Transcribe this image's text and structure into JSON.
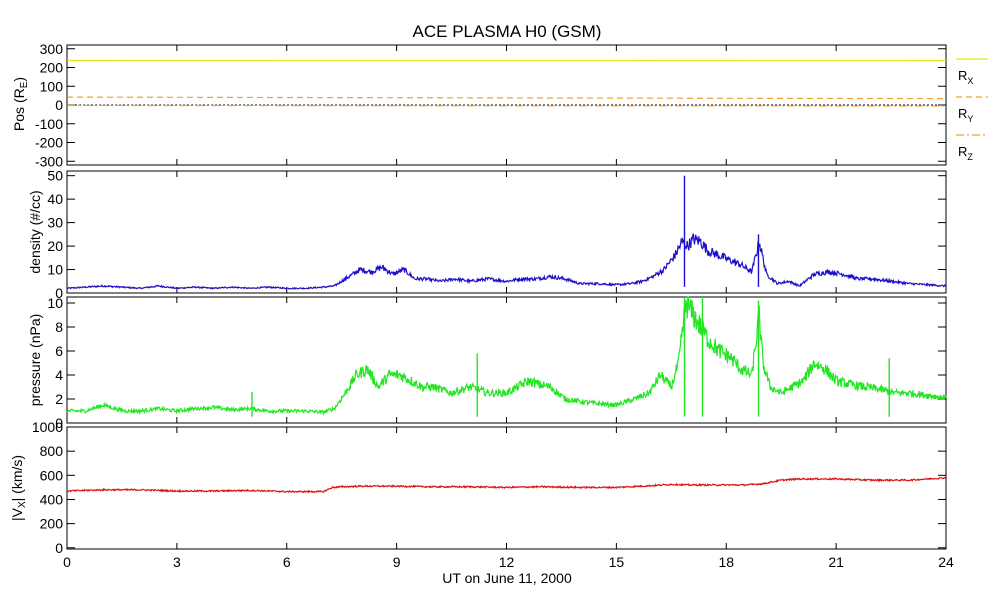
{
  "title": "ACE PLASMA H0 (GSM)",
  "xlabel": "UT on June 11, 2000",
  "chart_data": [
    {
      "type": "line",
      "ylabel": "Pos (RE)",
      "ylim": [
        -320,
        320
      ],
      "yticks": [
        300,
        200,
        100,
        0,
        -100,
        -200,
        -300
      ],
      "xlim": [
        0,
        24
      ],
      "xticks": [
        0,
        3,
        6,
        9,
        12,
        15,
        18,
        21,
        24
      ],
      "zero_line": true,
      "legend": "right",
      "series": [
        {
          "name": "RX",
          "color": "#e6e619",
          "style": "solid",
          "x": [
            0,
            24
          ],
          "values": [
            238,
            237
          ]
        },
        {
          "name": "RY",
          "color": "#f0a030",
          "style": "dashed",
          "x": [
            0,
            6,
            12,
            18,
            24
          ],
          "values": [
            42,
            40,
            38,
            36,
            34
          ]
        },
        {
          "name": "RZ",
          "color": "#f0a030",
          "style": "dashdot",
          "x": [
            0,
            6,
            12,
            18,
            24
          ],
          "values": [
            -2,
            -3,
            -4,
            -4,
            -5
          ]
        }
      ]
    },
    {
      "type": "line",
      "ylabel": "density (#/cc)",
      "ylim": [
        0,
        52
      ],
      "yticks": [
        0,
        10,
        20,
        30,
        40,
        50
      ],
      "xlim": [
        0,
        24
      ],
      "xticks": [
        0,
        3,
        6,
        9,
        12,
        15,
        18,
        21,
        24
      ],
      "series": [
        {
          "name": "density",
          "color": "#1e10c8",
          "x": [
            0,
            0.5,
            1,
            1.5,
            2,
            2.5,
            3,
            3.5,
            4,
            4.5,
            5,
            5.5,
            6,
            6.5,
            7,
            7.3,
            7.6,
            8,
            8.3,
            8.6,
            8.9,
            9.2,
            9.5,
            9.8,
            10.2,
            10.6,
            11,
            11.5,
            12,
            12.4,
            12.8,
            13.2,
            13.6,
            14,
            14.5,
            15,
            15.4,
            15.7,
            16,
            16.3,
            16.6,
            16.8,
            16.95,
            17.1,
            17.3,
            17.5,
            17.8,
            18.1,
            18.4,
            18.7,
            18.9,
            19.1,
            19.4,
            19.7,
            20,
            20.4,
            20.8,
            21.2,
            21.6,
            22,
            22.5,
            23,
            23.5,
            24
          ],
          "values": [
            2,
            2.5,
            3,
            2.5,
            2,
            3,
            2,
            2.5,
            2,
            2.5,
            2,
            2.5,
            2,
            2,
            2.5,
            3,
            6,
            10,
            9,
            11,
            8,
            10,
            6,
            6,
            5,
            6,
            5,
            6,
            5,
            6,
            6,
            7,
            6,
            4,
            4,
            3.5,
            4,
            5,
            7,
            10,
            16,
            22,
            20,
            23,
            22,
            18,
            16,
            14,
            12,
            9,
            22,
            8,
            4,
            5,
            3,
            8,
            9,
            8,
            6,
            6,
            5,
            4,
            3.5,
            3
          ]
        }
      ],
      "spikes": [
        {
          "x": 16.86,
          "value": 50
        },
        {
          "x": 18.88,
          "value": 25
        }
      ]
    },
    {
      "type": "line",
      "ylabel": "pressure (nPa)",
      "ylim": [
        0,
        10.5
      ],
      "yticks": [
        0,
        2,
        4,
        6,
        8,
        10
      ],
      "xlim": [
        0,
        24
      ],
      "xticks": [
        0,
        3,
        6,
        9,
        12,
        15,
        18,
        21,
        24
      ],
      "series": [
        {
          "name": "pressure",
          "color": "#22e622",
          "x": [
            0,
            0.5,
            1,
            1.3,
            1.6,
            2,
            2.5,
            3,
            3.5,
            4,
            4.5,
            5,
            5.5,
            6,
            6.5,
            7,
            7.3,
            7.6,
            7.9,
            8.2,
            8.5,
            8.8,
            9.1,
            9.4,
            9.7,
            10,
            10.5,
            11,
            11.5,
            12,
            12.3,
            12.6,
            12.9,
            13.2,
            13.6,
            14,
            14.5,
            15,
            15.5,
            15.9,
            16.2,
            16.5,
            16.7,
            16.9,
            17.1,
            17.3,
            17.5,
            17.8,
            18.1,
            18.4,
            18.7,
            18.9,
            19,
            19.2,
            19.5,
            19.8,
            20.1,
            20.4,
            20.7,
            21,
            21.4,
            21.8,
            22.2,
            22.6,
            23,
            23.5,
            24
          ],
          "values": [
            1,
            1,
            1.5,
            1.2,
            1,
            1,
            1.2,
            1,
            1.2,
            1.3,
            1.1,
            1.2,
            1,
            1,
            1,
            0.9,
            1.2,
            2.5,
            4,
            4.5,
            3,
            4,
            4,
            3.5,
            3,
            3,
            2.5,
            3,
            2.5,
            2.5,
            3,
            3.5,
            3.2,
            3,
            2,
            1.8,
            1.6,
            1.5,
            2,
            2.5,
            4,
            3,
            5,
            10,
            9,
            8,
            7,
            6,
            5.5,
            4.5,
            4,
            9,
            5,
            3,
            2.5,
            3,
            3.5,
            5,
            4.5,
            3.5,
            3.2,
            3,
            2.8,
            2.5,
            2.5,
            2.3,
            2.1
          ]
        }
      ],
      "spikes": [
        {
          "x": 5.05,
          "value": 2.6
        },
        {
          "x": 11.2,
          "value": 5.8
        },
        {
          "x": 16.86,
          "value": 10.5
        },
        {
          "x": 17.35,
          "value": 10.5
        },
        {
          "x": 18.88,
          "value": 10.2
        },
        {
          "x": 22.45,
          "value": 5.4
        }
      ]
    },
    {
      "type": "line",
      "ylabel": "|VX| (km/s)",
      "ylim": [
        -10,
        1000
      ],
      "yticks": [
        0,
        200,
        400,
        600,
        800,
        1000
      ],
      "xlim": [
        0,
        24
      ],
      "xticks": [
        0,
        3,
        6,
        9,
        12,
        15,
        18,
        21,
        24
      ],
      "series": [
        {
          "name": "|VX|",
          "color": "#dc1414",
          "x": [
            0,
            1,
            2,
            3,
            4,
            5,
            6,
            7,
            7.25,
            7.5,
            8,
            9,
            10,
            11,
            12,
            13,
            14,
            15,
            16,
            16.5,
            17,
            17.5,
            18,
            18.5,
            19,
            19.5,
            20,
            21,
            22,
            23,
            24
          ],
          "values": [
            470,
            480,
            480,
            470,
            470,
            475,
            465,
            465,
            500,
            505,
            510,
            510,
            505,
            505,
            500,
            505,
            500,
            500,
            515,
            525,
            520,
            520,
            520,
            520,
            530,
            560,
            570,
            570,
            560,
            560,
            580
          ]
        }
      ]
    }
  ]
}
